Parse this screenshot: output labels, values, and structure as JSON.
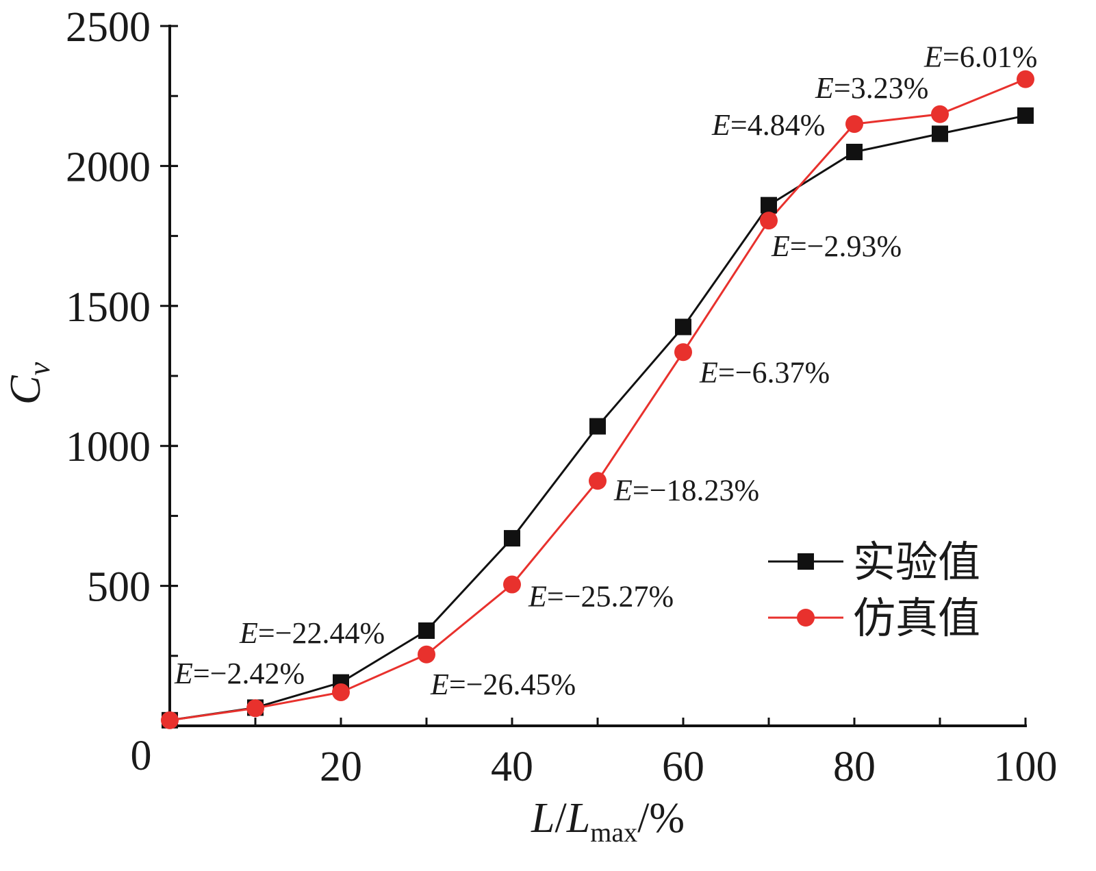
{
  "chart_data": {
    "type": "line",
    "xlabel": "L/Lmax/%",
    "ylabel": "Cv",
    "xlim": [
      0,
      100
    ],
    "ylim": [
      0,
      2500
    ],
    "xticks": [
      0,
      20,
      40,
      60,
      80,
      100
    ],
    "yticks": [
      500,
      1000,
      1500,
      2000,
      2500
    ],
    "x": [
      0,
      10,
      20,
      30,
      40,
      50,
      60,
      70,
      80,
      90,
      100
    ],
    "series": [
      {
        "name": "实验值",
        "color": "#111111",
        "marker": "square",
        "values": [
          20,
          65,
          155,
          340,
          670,
          1070,
          1425,
          1860,
          2050,
          2115,
          2180
        ]
      },
      {
        "name": "仿真值",
        "color": "#e8312d",
        "marker": "circle",
        "values": [
          20,
          63,
          120,
          255,
          505,
          875,
          1335,
          1805,
          2150,
          2185,
          2310
        ]
      }
    ],
    "annotations": [
      {
        "text": "E=−2.42%",
        "x": 10,
        "y": 63
      },
      {
        "text": "E=−22.44%",
        "x": 20,
        "y": 120
      },
      {
        "text": "E=−26.45%",
        "x": 30,
        "y": 255
      },
      {
        "text": "E=−25.27%",
        "x": 40,
        "y": 505
      },
      {
        "text": "E=−18.23%",
        "x": 50,
        "y": 875
      },
      {
        "text": "E=−6.37%",
        "x": 60,
        "y": 1335
      },
      {
        "text": "E=−2.93%",
        "x": 70,
        "y": 1805
      },
      {
        "text": "E=4.84%",
        "x": 80,
        "y": 2150
      },
      {
        "text": "E=3.23%",
        "x": 90,
        "y": 2185
      },
      {
        "text": "E=6.01%",
        "x": 100,
        "y": 2310
      }
    ],
    "grid": false,
    "legend": "lower-right"
  }
}
